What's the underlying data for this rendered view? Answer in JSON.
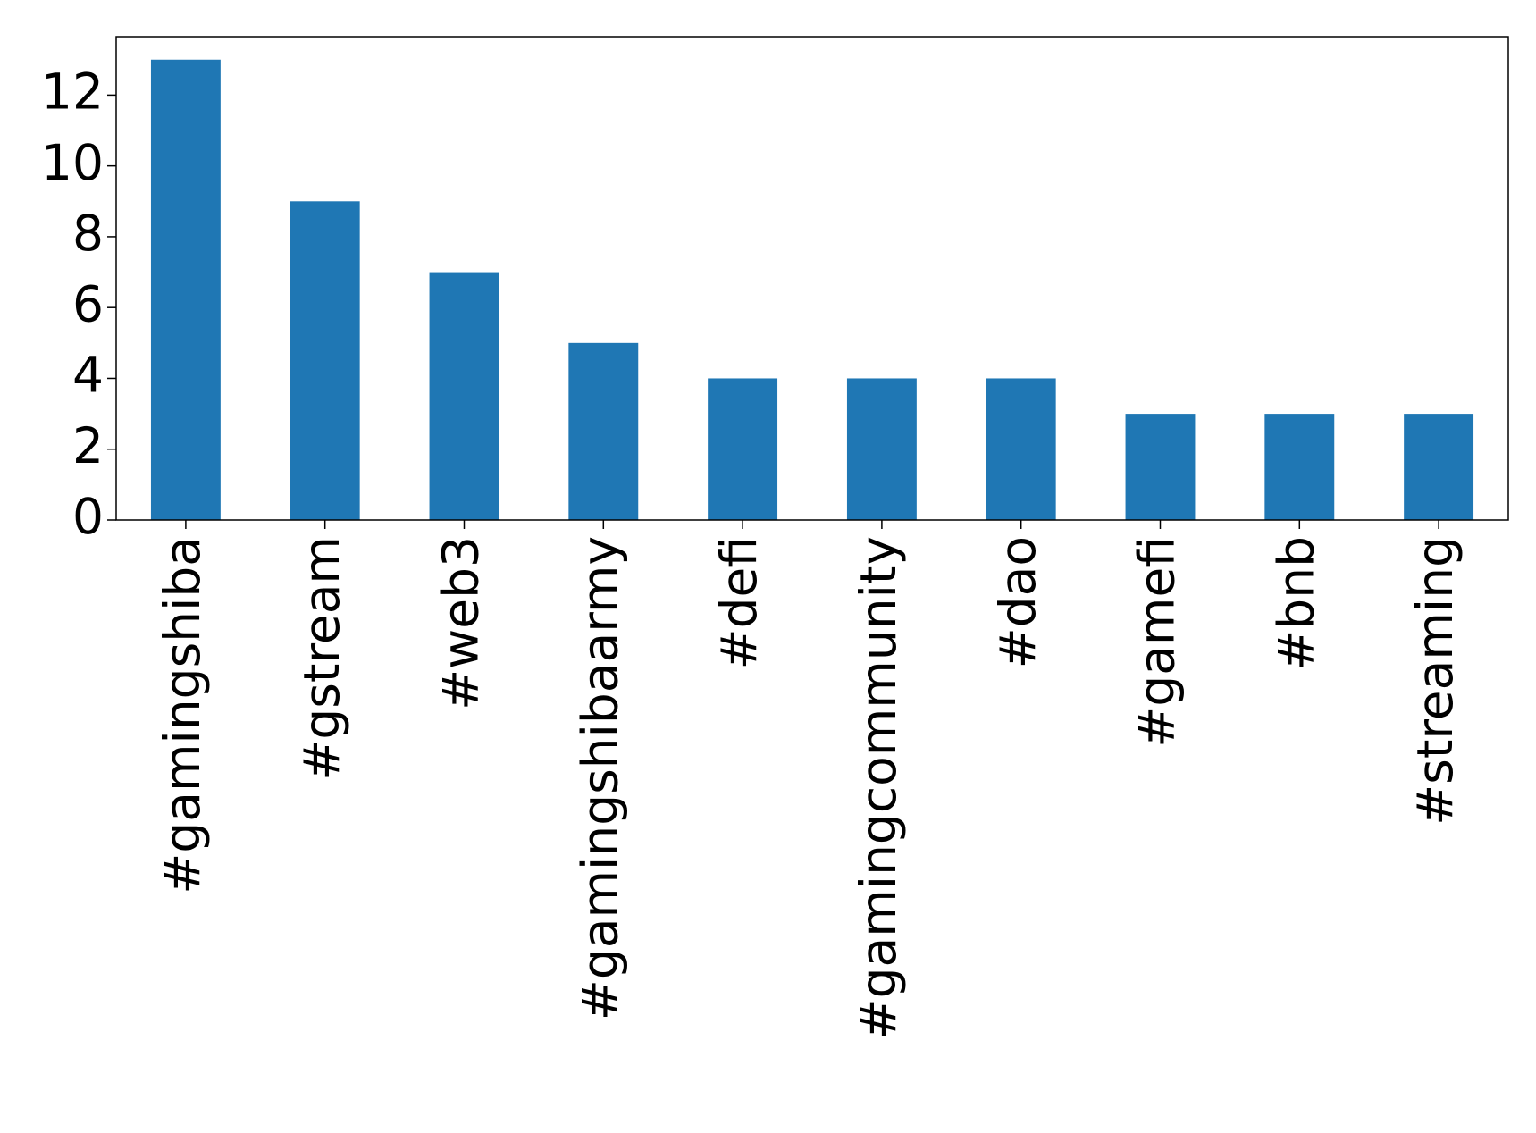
{
  "chart_data": {
    "type": "bar",
    "categories": [
      "#gamingshiba",
      "#gstream",
      "#web3",
      "#gamingshibaarmy",
      "#defi",
      "#gamingcommunity",
      "#dao",
      "#gamefi",
      "#bnb",
      "#streaming"
    ],
    "values": [
      13,
      9,
      7,
      5,
      4,
      4,
      4,
      3,
      3,
      3
    ],
    "color": "#1f77b4",
    "ylim": [
      0,
      13.65
    ],
    "yticks": [
      0,
      2,
      4,
      6,
      8,
      10,
      12
    ],
    "grid": false
  }
}
